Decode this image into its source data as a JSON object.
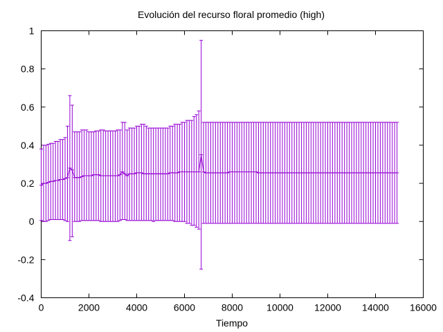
{
  "chart_data": {
    "type": "line",
    "title": "Evolución del recurso floral promedio (high)",
    "xlabel": "Tiempo",
    "ylabel": "",
    "xlim": [
      0,
      16000
    ],
    "ylim": [
      -0.4,
      1.0
    ],
    "x_ticks": [
      0,
      2000,
      4000,
      6000,
      8000,
      10000,
      12000,
      14000,
      16000
    ],
    "y_ticks": [
      -0.4,
      -0.2,
      0,
      0.2,
      0.4,
      0.6,
      0.8,
      1.0
    ],
    "x_tick_labels": [
      "0",
      "2000",
      "4000",
      "6000",
      "8000",
      "10000",
      "12000",
      "14000",
      "16000"
    ],
    "y_tick_labels": [
      "-0.4",
      "-0.2",
      "0",
      "0.2",
      "0.4",
      "0.6",
      "0.8",
      "1"
    ],
    "grid": false,
    "legend": "none",
    "series_color": "#9400d3",
    "series": [
      {
        "x": [
          0,
          100,
          200,
          300,
          400,
          500,
          600,
          700,
          800,
          900,
          1000,
          1100,
          1200,
          1300,
          1400,
          1500,
          1600,
          1700,
          1800,
          1900,
          2000,
          2100,
          2200,
          2300,
          2400,
          2500,
          2600,
          2700,
          2800,
          2900,
          3000,
          3100,
          3200,
          3300,
          3400,
          3500,
          3600,
          3700,
          3800,
          3900,
          4000,
          4100,
          4200,
          4300,
          4400,
          4500,
          4600,
          4700,
          4800,
          4900,
          5000,
          5100,
          5200,
          5300,
          5400,
          5500,
          5600,
          5700,
          5800,
          5900,
          6000,
          6100,
          6200,
          6300,
          6400,
          6500,
          6600,
          6700,
          6800,
          6900,
          7000,
          7100,
          7200,
          7300,
          7400,
          7500,
          7600,
          7700,
          7800,
          7900,
          8000,
          8100,
          8200,
          8300,
          8400,
          8500,
          8600,
          8700,
          8800,
          8900,
          9000,
          9100,
          9200,
          9300,
          9400,
          9500,
          9600,
          9700,
          9800,
          9900,
          10000,
          10100,
          10200,
          10300,
          10400,
          10500,
          10600,
          10700,
          10800,
          10900,
          11000,
          11100,
          11200,
          11300,
          11400,
          11500,
          11600,
          11700,
          11800,
          11900,
          12000,
          12100,
          12200,
          12300,
          12400,
          12500,
          12600,
          12700,
          12800,
          12900,
          13000,
          13100,
          13200,
          13300,
          13400,
          13500,
          13600,
          13700,
          13800,
          13900,
          14000,
          14100,
          14200,
          14300,
          14400,
          14500,
          14600,
          14700,
          14800,
          14900
        ],
        "y": [
          0.19,
          0.2,
          0.2,
          0.205,
          0.21,
          0.21,
          0.215,
          0.215,
          0.22,
          0.22,
          0.225,
          0.23,
          0.28,
          0.27,
          0.23,
          0.23,
          0.23,
          0.235,
          0.24,
          0.24,
          0.24,
          0.24,
          0.245,
          0.245,
          0.245,
          0.24,
          0.24,
          0.24,
          0.24,
          0.24,
          0.24,
          0.24,
          0.24,
          0.245,
          0.26,
          0.25,
          0.24,
          0.25,
          0.25,
          0.25,
          0.255,
          0.255,
          0.255,
          0.25,
          0.25,
          0.25,
          0.25,
          0.25,
          0.25,
          0.25,
          0.25,
          0.25,
          0.25,
          0.25,
          0.255,
          0.255,
          0.255,
          0.255,
          0.26,
          0.26,
          0.26,
          0.26,
          0.26,
          0.26,
          0.26,
          0.26,
          0.26,
          0.35,
          0.26,
          0.255,
          0.255,
          0.255,
          0.255,
          0.255,
          0.255,
          0.255,
          0.255,
          0.255,
          0.255,
          0.26,
          0.26,
          0.26,
          0.26,
          0.26,
          0.26,
          0.26,
          0.26,
          0.26,
          0.26,
          0.26,
          0.26,
          0.255,
          0.255,
          0.255,
          0.255,
          0.255,
          0.255,
          0.255,
          0.255,
          0.255,
          0.255,
          0.255,
          0.255,
          0.255,
          0.255,
          0.255,
          0.255,
          0.255,
          0.255,
          0.255,
          0.255,
          0.255,
          0.255,
          0.255,
          0.255,
          0.255,
          0.255,
          0.255,
          0.255,
          0.255,
          0.255,
          0.255,
          0.255,
          0.255,
          0.255,
          0.255,
          0.255,
          0.255,
          0.255,
          0.255,
          0.255,
          0.255,
          0.255,
          0.255,
          0.255,
          0.255,
          0.255,
          0.255,
          0.255,
          0.255,
          0.255,
          0.255,
          0.255,
          0.255,
          0.255,
          0.255,
          0.255,
          0.255,
          0.255,
          0.255
        ],
        "y_low": [
          0.005,
          0.0,
          0.0,
          0.005,
          0.01,
          0.01,
          0.01,
          0.01,
          0.01,
          0.01,
          0.005,
          0.0,
          -0.1,
          -0.08,
          0.0,
          0.0,
          0.0,
          0.005,
          0.005,
          0.005,
          0.005,
          0.005,
          0.005,
          0.005,
          0.005,
          0.0,
          0.0,
          0.0,
          0.0,
          0.0,
          0.0,
          0.0,
          0.0,
          0.005,
          0.01,
          0.01,
          0.005,
          0.005,
          0.005,
          0.005,
          0.005,
          0.005,
          0.005,
          0.005,
          0.005,
          0.005,
          0.005,
          0.0,
          0.005,
          0.005,
          0.005,
          0.005,
          0.005,
          0.005,
          0.005,
          0.005,
          0.0,
          0.0,
          0.0,
          0.0,
          0.0,
          -0.01,
          -0.01,
          -0.02,
          -0.02,
          -0.03,
          -0.04,
          -0.25,
          -0.01,
          -0.01,
          -0.01,
          -0.01,
          -0.01,
          -0.01,
          -0.01,
          -0.01,
          -0.01,
          -0.01,
          -0.01,
          -0.01,
          -0.01,
          -0.01,
          -0.01,
          -0.01,
          -0.01,
          -0.01,
          -0.01,
          -0.01,
          -0.01,
          -0.01,
          -0.01,
          -0.01,
          -0.01,
          -0.01,
          -0.01,
          -0.01,
          -0.01,
          -0.01,
          -0.01,
          -0.01,
          -0.01,
          -0.01,
          -0.01,
          -0.01,
          -0.01,
          -0.01,
          -0.01,
          -0.01,
          -0.01,
          -0.01,
          -0.01,
          -0.01,
          -0.01,
          -0.01,
          -0.01,
          -0.01,
          -0.01,
          -0.01,
          -0.01,
          -0.01,
          -0.01,
          -0.01,
          -0.01,
          -0.01,
          -0.01,
          -0.01,
          -0.01,
          -0.01,
          -0.01,
          -0.01,
          -0.01,
          -0.01,
          -0.01,
          -0.01,
          -0.01,
          -0.01,
          -0.01,
          -0.01,
          -0.01,
          -0.01,
          -0.01,
          -0.01,
          -0.01,
          -0.01,
          -0.01,
          -0.01,
          -0.01,
          -0.01,
          -0.01,
          -0.01
        ],
        "y_high": [
          0.38,
          0.4,
          0.4,
          0.405,
          0.41,
          0.41,
          0.42,
          0.42,
          0.43,
          0.43,
          0.44,
          0.5,
          0.66,
          0.61,
          0.47,
          0.47,
          0.47,
          0.48,
          0.48,
          0.48,
          0.47,
          0.47,
          0.47,
          0.475,
          0.475,
          0.48,
          0.48,
          0.475,
          0.475,
          0.475,
          0.475,
          0.475,
          0.48,
          0.48,
          0.52,
          0.52,
          0.48,
          0.49,
          0.49,
          0.49,
          0.5,
          0.5,
          0.51,
          0.51,
          0.5,
          0.49,
          0.49,
          0.49,
          0.49,
          0.49,
          0.49,
          0.49,
          0.49,
          0.49,
          0.5,
          0.5,
          0.51,
          0.51,
          0.51,
          0.52,
          0.52,
          0.53,
          0.53,
          0.53,
          0.55,
          0.56,
          0.58,
          0.95,
          0.52,
          0.52,
          0.52,
          0.52,
          0.52,
          0.52,
          0.52,
          0.52,
          0.52,
          0.52,
          0.52,
          0.52,
          0.52,
          0.52,
          0.52,
          0.52,
          0.52,
          0.52,
          0.52,
          0.52,
          0.52,
          0.52,
          0.52,
          0.52,
          0.52,
          0.52,
          0.52,
          0.52,
          0.52,
          0.52,
          0.52,
          0.52,
          0.52,
          0.52,
          0.52,
          0.52,
          0.52,
          0.52,
          0.52,
          0.52,
          0.52,
          0.52,
          0.52,
          0.52,
          0.52,
          0.52,
          0.52,
          0.52,
          0.52,
          0.52,
          0.52,
          0.52,
          0.52,
          0.52,
          0.52,
          0.52,
          0.52,
          0.52,
          0.52,
          0.52,
          0.52,
          0.52,
          0.52,
          0.52,
          0.52,
          0.52,
          0.52,
          0.52,
          0.52,
          0.52,
          0.52,
          0.52,
          0.52,
          0.52,
          0.52,
          0.52,
          0.52,
          0.52,
          0.52,
          0.52,
          0.52,
          0.52
        ]
      }
    ]
  }
}
